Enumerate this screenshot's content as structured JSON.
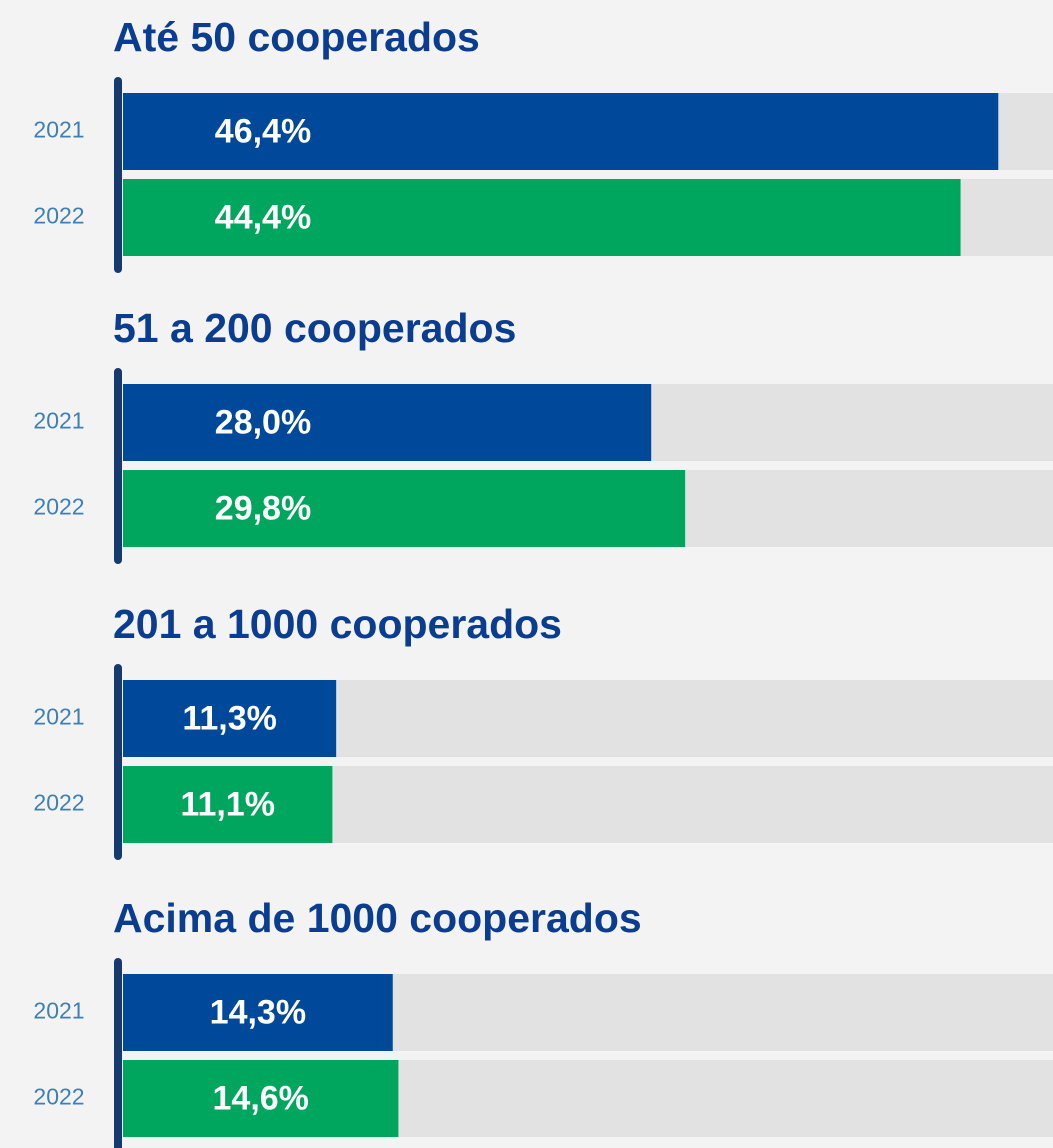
{
  "chart_data": [
    {
      "type": "bar",
      "title": "Até 50 cooperados",
      "categories": [
        "2021",
        "2022"
      ],
      "values": [
        46.4,
        44.4
      ],
      "value_labels": [
        "46,4%",
        "44,4%"
      ],
      "colors": [
        "#00489a",
        "#00a65d"
      ],
      "xlim": [
        0,
        49.3
      ]
    },
    {
      "type": "bar",
      "title": "51 a 200 cooperados",
      "categories": [
        "2021",
        "2022"
      ],
      "values": [
        28.0,
        29.8
      ],
      "value_labels": [
        "28,0%",
        "29,8%"
      ],
      "colors": [
        "#00489a",
        "#00a65d"
      ],
      "xlim": [
        0,
        49.3
      ]
    },
    {
      "type": "bar",
      "title": "201 a 1000 cooperados",
      "categories": [
        "2021",
        "2022"
      ],
      "values": [
        11.3,
        11.1
      ],
      "value_labels": [
        "11,3%",
        "11,1%"
      ],
      "colors": [
        "#00489a",
        "#00a65d"
      ],
      "xlim": [
        0,
        49.3
      ]
    },
    {
      "type": "bar",
      "title": "Acima de 1000 cooperados",
      "categories": [
        "2021",
        "2022"
      ],
      "values": [
        14.3,
        14.6
      ],
      "value_labels": [
        "14,3%",
        "14,6%"
      ],
      "colors": [
        "#00489a",
        "#00a65d"
      ],
      "xlim": [
        0,
        49.3
      ]
    }
  ]
}
